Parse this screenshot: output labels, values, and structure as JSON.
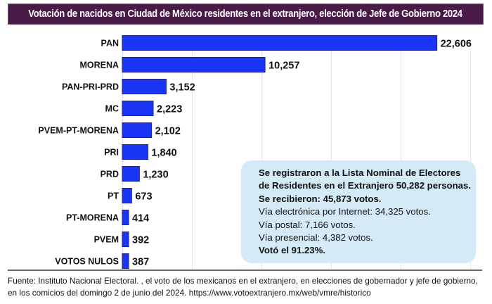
{
  "title": "Votación de nacidos en Ciudad de México residentes en el extranjero, elección de Jefe de Gobierno 2024",
  "chart_data": {
    "type": "bar",
    "orientation": "horizontal",
    "title": "Votación de nacidos en Ciudad de México residentes en el extranjero, elección de Jefe de Gobierno 2024",
    "categories": [
      "PAN",
      "MORENA",
      "PAN-PRI-PRD",
      "MC",
      "PVEM-PT-MORENA",
      "PRI",
      "PRD",
      "PT",
      "PT-MORENA",
      "PVEM",
      "VOTOS NULOS"
    ],
    "values": [
      22606,
      10257,
      3152,
      2223,
      2102,
      1840,
      1230,
      673,
      414,
      392,
      387
    ],
    "value_labels": [
      "22,606",
      "10,257",
      "3,152",
      "2,223",
      "2,102",
      "1,840",
      "1,230",
      "673",
      "414",
      "392",
      "387"
    ],
    "xlim": [
      0,
      25000
    ],
    "grid_step": 5000,
    "grid": true,
    "xlabel": "",
    "ylabel": "",
    "colors": {
      "bar": "#1a35f5",
      "bar_border": "#1c1f9e",
      "grid": "#e3e6ee"
    }
  },
  "info_box": {
    "lines": [
      {
        "text": "Se registraron a la Lista Nominal de Electores",
        "bold": true
      },
      {
        "text": "de Residentes en el Extranjero 50,282 personas.",
        "bold": true
      },
      {
        "text": "Se recibieron: 45,873 votos.",
        "bold": true
      },
      {
        "text": "Vía electrónica por Internet: 34,325 votos.",
        "bold": false
      },
      {
        "text": "Vía postal: 7,166 votos.",
        "bold": false
      },
      {
        "text": "Vía presencial: 4,382 votos.",
        "bold": false
      },
      {
        "text": "Votó el 91.23%.",
        "bold": true
      }
    ]
  },
  "footer": {
    "line1": "Fuente: Instituto Nacional Electoral.     , el voto de los mexicanos en el extranjero, en elecciones de gobernador y jefe de gobierno,",
    "line2": "en los comicios del domingo 2 de junio del 2024. https://www.votoextranjero.mx/web/vmre/historico"
  },
  "colors": {
    "title_bg": "#4a1a48",
    "info_bg": "#d4eaf7"
  }
}
